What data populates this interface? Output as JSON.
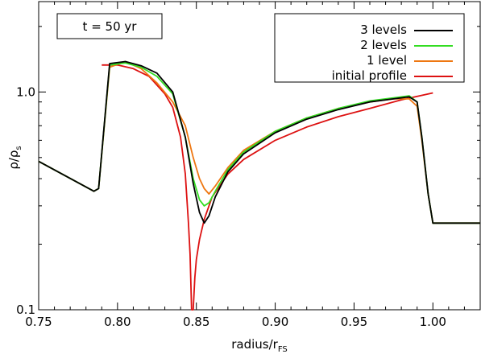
{
  "chart_data": {
    "type": "line",
    "annotation": "t = 50 yr",
    "xlabel": "radius/r",
    "xlabel_sub": "FS",
    "ylabel": "ρ/ρ",
    "ylabel_sub": "s",
    "x_scale": "linear",
    "y_scale": "log",
    "xlim": [
      0.75,
      1.03
    ],
    "ylim": [
      0.1,
      2.6
    ],
    "x_ticks": [
      0.75,
      0.8,
      0.85,
      0.9,
      0.95,
      1.0
    ],
    "x_tick_labels": [
      "0.75",
      "0.80",
      "0.85",
      "0.90",
      "0.95",
      "1.00"
    ],
    "y_ticks": [
      0.1,
      1.0
    ],
    "y_tick_labels": [
      "0.1",
      "1.0"
    ],
    "legend_position": "top-right",
    "grid": false,
    "series": [
      {
        "name": "3 levels",
        "color": "#000000",
        "x": [
          0.75,
          0.785,
          0.788,
          0.795,
          0.805,
          0.815,
          0.825,
          0.835,
          0.843,
          0.848,
          0.852,
          0.855,
          0.858,
          0.862,
          0.87,
          0.88,
          0.9,
          0.92,
          0.94,
          0.96,
          0.975,
          0.985,
          0.99,
          0.993,
          0.997,
          1.0,
          1.03
        ],
        "y": [
          0.48,
          0.35,
          0.36,
          1.35,
          1.38,
          1.32,
          1.22,
          1.0,
          0.62,
          0.38,
          0.28,
          0.25,
          0.27,
          0.33,
          0.43,
          0.52,
          0.65,
          0.75,
          0.83,
          0.9,
          0.93,
          0.95,
          0.9,
          0.62,
          0.34,
          0.25,
          0.25
        ]
      },
      {
        "name": "2 levels",
        "color": "#33dd22",
        "x": [
          0.75,
          0.785,
          0.788,
          0.795,
          0.805,
          0.815,
          0.825,
          0.835,
          0.843,
          0.848,
          0.852,
          0.855,
          0.858,
          0.862,
          0.87,
          0.88,
          0.9,
          0.92,
          0.94,
          0.96,
          0.975,
          0.985,
          0.99,
          0.993,
          0.997,
          1.0,
          1.03
        ],
        "y": [
          0.48,
          0.35,
          0.36,
          1.33,
          1.36,
          1.3,
          1.18,
          0.98,
          0.62,
          0.4,
          0.32,
          0.3,
          0.31,
          0.35,
          0.44,
          0.53,
          0.66,
          0.76,
          0.84,
          0.91,
          0.94,
          0.96,
          0.9,
          0.62,
          0.34,
          0.25,
          0.25
        ]
      },
      {
        "name": "1 level",
        "color": "#ee7711",
        "x": [
          0.75,
          0.785,
          0.788,
          0.795,
          0.805,
          0.815,
          0.825,
          0.835,
          0.843,
          0.848,
          0.852,
          0.855,
          0.858,
          0.862,
          0.87,
          0.88,
          0.9,
          0.92,
          0.94,
          0.96,
          0.975,
          0.985,
          0.99,
          0.993,
          0.997,
          1.0,
          1.03
        ],
        "y": [
          0.48,
          0.35,
          0.36,
          1.3,
          1.38,
          1.28,
          1.1,
          0.9,
          0.7,
          0.5,
          0.4,
          0.36,
          0.34,
          0.37,
          0.45,
          0.54,
          0.66,
          0.76,
          0.84,
          0.9,
          0.93,
          0.93,
          0.86,
          0.6,
          0.34,
          0.25,
          0.25
        ]
      },
      {
        "name": "initial profile",
        "color": "#dd1111",
        "x": [
          0.79,
          0.8,
          0.81,
          0.82,
          0.83,
          0.835,
          0.84,
          0.843,
          0.845,
          0.846,
          0.847,
          0.848,
          0.849,
          0.85,
          0.852,
          0.855,
          0.86,
          0.87,
          0.88,
          0.9,
          0.92,
          0.94,
          0.96,
          0.98,
          1.0
        ],
        "y": [
          1.33,
          1.33,
          1.28,
          1.18,
          0.98,
          0.85,
          0.62,
          0.42,
          0.25,
          0.18,
          0.1,
          0.1,
          0.14,
          0.17,
          0.21,
          0.26,
          0.33,
          0.42,
          0.49,
          0.6,
          0.69,
          0.77,
          0.84,
          0.92,
          0.99
        ]
      }
    ]
  }
}
